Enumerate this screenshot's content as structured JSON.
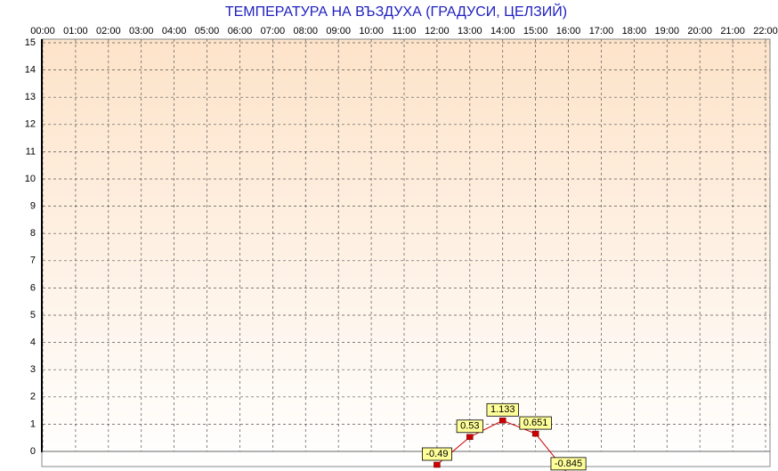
{
  "chart_data": {
    "type": "line",
    "title": "ТЕМПЕРАТУРА НА ВЪЗДУХА  (ГРАДУСИ, ЦЕЛЗИЙ)",
    "categories": [
      "00:00",
      "01:00",
      "02:00",
      "03:00",
      "04:00",
      "05:00",
      "06:00",
      "07:00",
      "08:00",
      "09:00",
      "10:00",
      "11:00",
      "12:00",
      "13:00",
      "14:00",
      "15:00",
      "16:00",
      "17:00",
      "18:00",
      "19:00",
      "20:00",
      "21:00",
      "22:00"
    ],
    "values": [
      null,
      null,
      null,
      null,
      null,
      null,
      null,
      null,
      null,
      null,
      null,
      null,
      -0.49,
      0.53,
      1.133,
      0.651,
      -0.845,
      null,
      null,
      null,
      null,
      null,
      null
    ],
    "color": "#cc0000",
    "ylim": [
      0,
      15
    ],
    "yticks": [
      0,
      1,
      2,
      3,
      4,
      5,
      6,
      7,
      8,
      9,
      10,
      11,
      12,
      13,
      14,
      15
    ],
    "grid": true
  }
}
